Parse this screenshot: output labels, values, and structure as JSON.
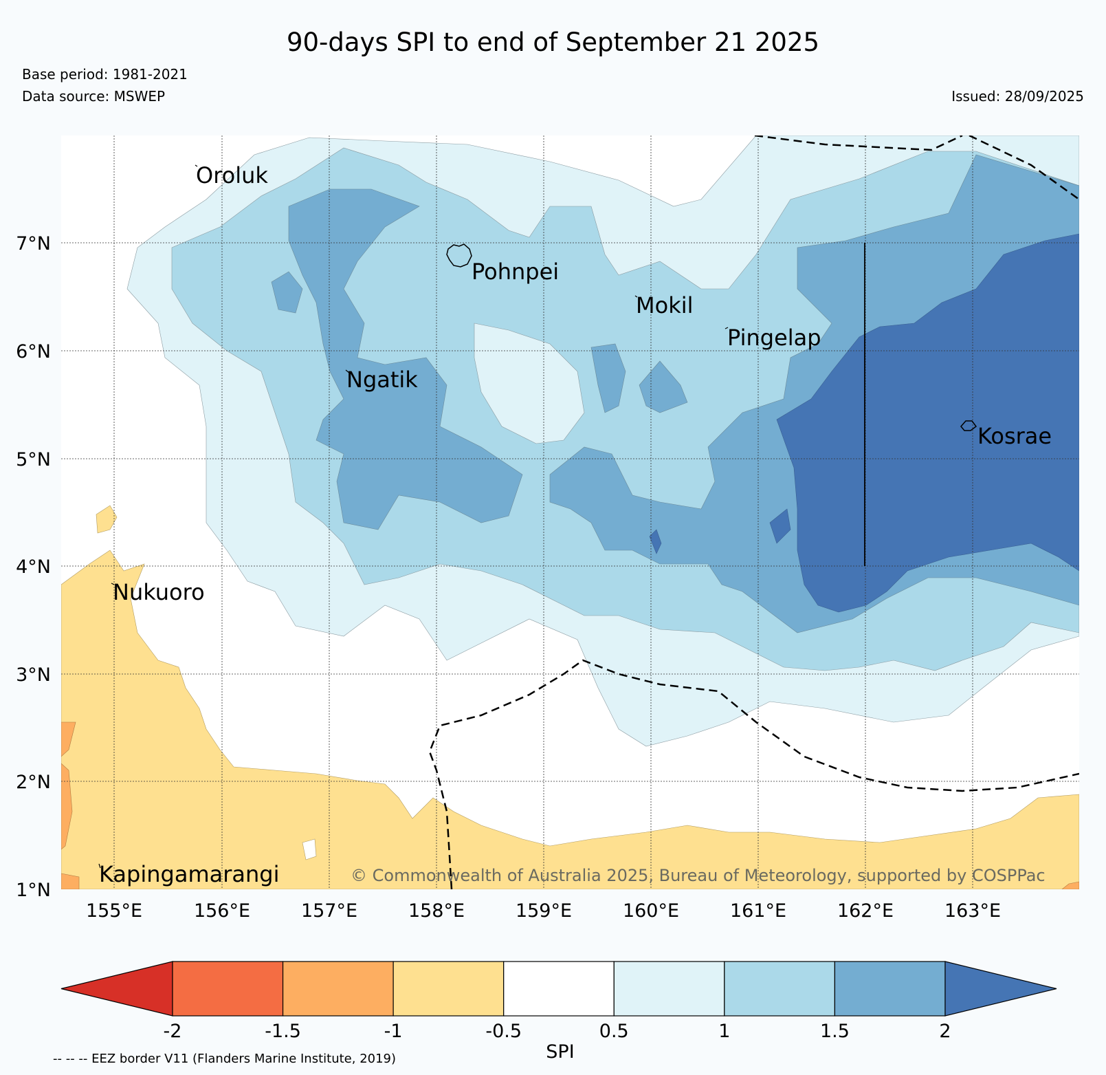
{
  "title": "90-days SPI to end of September 21 2025",
  "base_period": "Base period: 1981-2021",
  "data_source": "Data source: MSWEP",
  "issued": "Issued: 28/09/2025",
  "copyright": "© Commonwealth of Australia 2025, Bureau of Meteorology, supported by COSPPac",
  "eez_note": "-- -- -- EEZ border V11 (Flanders Marine Institute, 2019)",
  "colorbar_label": "SPI",
  "places": {
    "oroluk": "Oroluk",
    "pohnpei": "Pohnpei",
    "mokil": "Mokil",
    "pingelap": "Pingelap",
    "ngatik": "Ngatik",
    "kosrae": "Kosrae",
    "nukuoro": "Nukuoro",
    "kapingamarangi": "Kapingamarangi"
  },
  "chart_data": {
    "type": "heatmap",
    "title": "90-days SPI to end of September 21 2025",
    "lon_ticks": [
      "155°E",
      "156°E",
      "157°E",
      "158°E",
      "159°E",
      "160°E",
      "161°E",
      "162°E",
      "163°E"
    ],
    "lat_ticks": [
      "7°N",
      "6°N",
      "5°N",
      "4°N",
      "3°N",
      "2°N",
      "1°N"
    ],
    "lon_range": [
      154.5,
      164.0
    ],
    "lat_range": [
      1.0,
      8.0
    ],
    "colorbar": {
      "label": "SPI",
      "ticks": [
        "-2",
        "-1.5",
        "-1",
        "-0.5",
        "0.5",
        "1",
        "1.5",
        "2"
      ],
      "bins": [
        {
          "range": "< -2",
          "color": "#d73027"
        },
        {
          "range": "-2 to -1.5",
          "color": "#f46d43"
        },
        {
          "range": "-1.5 to -1",
          "color": "#fdae61"
        },
        {
          "range": "-1 to -0.5",
          "color": "#fee090"
        },
        {
          "range": "-0.5 to 0.5",
          "color": "#ffffff"
        },
        {
          "range": "0.5 to 1",
          "color": "#e0f3f8"
        },
        {
          "range": "1 to 1.5",
          "color": "#abd9e9"
        },
        {
          "range": "1.5 to 2",
          "color": "#74add1"
        },
        {
          "range": "> 2",
          "color": "#4575b4"
        }
      ]
    }
  }
}
